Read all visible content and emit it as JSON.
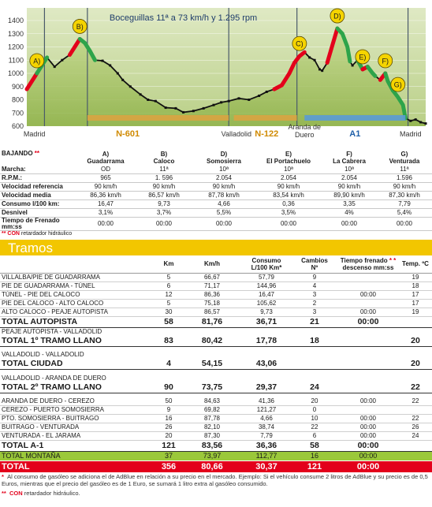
{
  "chart_data": {
    "type": "area",
    "annotation": "Boceguillas 11ª a 73 km/h y 1.295 rpm",
    "y_ticks": [
      "1400",
      "1300",
      "1200",
      "1100",
      "1000",
      "900",
      "800",
      "700",
      "600"
    ],
    "ylim": [
      580,
      1450
    ],
    "profile": [
      [
        0,
        880
      ],
      [
        4,
        1000
      ],
      [
        8,
        1120
      ],
      [
        11,
        1050
      ],
      [
        14,
        1100
      ],
      [
        17,
        1140
      ],
      [
        19,
        1200
      ],
      [
        21,
        1260
      ],
      [
        23,
        1230
      ],
      [
        25,
        1170
      ],
      [
        27,
        1100
      ],
      [
        30,
        1095
      ],
      [
        33,
        1060
      ],
      [
        36,
        1000
      ],
      [
        38,
        950
      ],
      [
        41,
        900
      ],
      [
        45,
        840
      ],
      [
        48,
        800
      ],
      [
        51,
        790
      ],
      [
        55,
        740
      ],
      [
        59,
        735
      ],
      [
        62,
        705
      ],
      [
        66,
        715
      ],
      [
        70,
        735
      ],
      [
        74,
        760
      ],
      [
        77,
        780
      ],
      [
        80,
        790
      ],
      [
        84,
        810
      ],
      [
        88,
        800
      ],
      [
        92,
        830
      ],
      [
        95,
        860
      ],
      [
        98,
        880
      ],
      [
        101,
        910
      ],
      [
        104,
        1000
      ],
      [
        106,
        1080
      ],
      [
        108,
        1130
      ],
      [
        110,
        1160
      ],
      [
        112,
        1120
      ],
      [
        114,
        1100
      ],
      [
        116,
        1030
      ],
      [
        117,
        1020
      ],
      [
        119,
        1080
      ],
      [
        121,
        1210
      ],
      [
        123,
        1340
      ],
      [
        125,
        1300
      ],
      [
        127,
        1200
      ],
      [
        128,
        1090
      ],
      [
        129,
        1060
      ],
      [
        131,
        1100
      ],
      [
        133,
        1030
      ],
      [
        135,
        1050
      ],
      [
        137,
        1000
      ],
      [
        138,
        980
      ],
      [
        140,
        950
      ],
      [
        142,
        1000
      ],
      [
        143,
        940
      ],
      [
        145,
        870
      ],
      [
        147,
        820
      ],
      [
        149,
        760
      ],
      [
        150,
        660
      ],
      [
        152,
        640
      ],
      [
        154,
        650
      ],
      [
        156,
        630
      ],
      [
        158,
        620
      ]
    ],
    "segments_color": [
      {
        "from": 0,
        "to": 4,
        "color": "#e3001b"
      },
      {
        "from": 4,
        "to": 8,
        "color": "#2da44a"
      },
      {
        "from": 17,
        "to": 21,
        "color": "#e3001b"
      },
      {
        "from": 21,
        "to": 27,
        "color": "#2da44a"
      },
      {
        "from": 98,
        "to": 110,
        "color": "#e3001b"
      },
      {
        "from": 119,
        "to": 123,
        "color": "#e3001b"
      },
      {
        "from": 123,
        "to": 128,
        "color": "#2da44a"
      },
      {
        "from": 131,
        "to": 133,
        "color": "#2da44a"
      },
      {
        "from": 133,
        "to": 135,
        "color": "#e3001b"
      },
      {
        "from": 135,
        "to": 138,
        "color": "#2da44a"
      },
      {
        "from": 140,
        "to": 142,
        "color": "#e3001b"
      },
      {
        "from": 142,
        "to": 145,
        "color": "#2da44a"
      },
      {
        "from": 145,
        "to": 150,
        "color": "#2da44a"
      }
    ],
    "points": [
      {
        "label": "A)",
        "x": 4
      },
      {
        "label": "B)",
        "x": 21
      },
      {
        "label": "C)",
        "x": 108
      },
      {
        "label": "D)",
        "x": 123
      },
      {
        "label": "E)",
        "x": 133
      },
      {
        "label": "F)",
        "x": 142
      },
      {
        "label": "G)",
        "x": 147
      }
    ],
    "places": [
      {
        "label": "Madrid",
        "x": 3
      },
      {
        "label": "Valladolid",
        "x": 83
      },
      {
        "label": "Aranda de Duero",
        "x": 110
      },
      {
        "label": "Madrid",
        "x": 152
      }
    ],
    "roads": [
      {
        "label": "N-601",
        "x": 40,
        "from": 24,
        "to": 80,
        "color": "#d9a441"
      },
      {
        "label": "N-122",
        "x": 95,
        "from": 82,
        "to": 107,
        "color": "#d9a441"
      },
      {
        "label": "A1",
        "x": 130,
        "from": 110,
        "to": 150,
        "color": "#5b9bd5"
      }
    ],
    "section_lines": [
      7,
      24,
      80,
      107,
      151
    ]
  },
  "bajando": {
    "title": "BAJANDO",
    "title_marks": "**",
    "headers": [
      "A)\nGuadarrama",
      "B)\nCaloco",
      "D)\nSomosierra",
      "E)\nEl Portachuelo",
      "F)\nLa Cabrera",
      "G)\nVenturada"
    ],
    "rows": [
      {
        "label": "Marcha:",
        "values": [
          "OD",
          "11ª",
          "10ª",
          "10ª",
          "10ª",
          "11ª"
        ]
      },
      {
        "label": "R.P.M.:",
        "values": [
          "965",
          "1. 596",
          "2.054",
          "2.054",
          "2.054",
          "1.596"
        ]
      },
      {
        "label": "Velocidad referencia",
        "values": [
          "90 km/h",
          "90 km/h",
          "90 km/h",
          "90 km/h",
          "90 km/h",
          "90 km/h"
        ]
      },
      {
        "label": "Velocidad media",
        "values": [
          "86,36 km/h",
          "86,57 km/h",
          "87,78 km/h",
          "83,54 km/h",
          "89,90 km/h",
          "87,30 km/h"
        ]
      },
      {
        "label": "Consumo l/100 km:",
        "values": [
          "16,47",
          "9,73",
          "4,66",
          "0,36",
          "3,35",
          "7,79"
        ]
      },
      {
        "label": "Desnivel",
        "values": [
          "3,1%",
          "3,7%",
          "5,5%",
          "3,5%",
          "4%",
          "5,4%"
        ]
      },
      {
        "label": "Tiempo de  Frenado mm:ss",
        "values": [
          "00:00",
          "00:00",
          "00:00",
          "00:00",
          "00:00",
          "00:00"
        ]
      }
    ],
    "note_marks": "**",
    "note_con": "CON",
    "note_text": "retardador hidráulico"
  },
  "tramos": {
    "title": "Tramos",
    "headers": [
      "",
      "Km",
      "Km/h",
      "Consumo\nL/100 Km*",
      "Cambios\nNº",
      "Tiempo frenado\ndescenso mm:ss",
      "Temp. ºC"
    ],
    "header_marks": "* *",
    "rows": [
      {
        "t": "row",
        "cells": [
          "VILLALBA/PIE DE GUADARRAMA",
          "5",
          "66,67",
          "57,79",
          "9",
          "",
          "19"
        ]
      },
      {
        "t": "row",
        "cells": [
          "PIE DE GUADARRAMA - TÚNEL",
          "6",
          "71,17",
          "144,96",
          "4",
          "",
          "18"
        ]
      },
      {
        "t": "row",
        "cells": [
          "TÚNEL - PIE DEL CALOCO",
          "12",
          "86,36",
          "16,47",
          "3",
          "00:00",
          "17"
        ]
      },
      {
        "t": "row",
        "cells": [
          "PIE DEL CALOCO - ALTO CALOCO",
          "5",
          "75,18",
          "105,62",
          "2",
          "",
          "17"
        ]
      },
      {
        "t": "row",
        "cells": [
          "ALTO CALOCO - PEAJE AUTOPISTA",
          "30",
          "86,57",
          "9,73",
          "3",
          "00:00",
          "19"
        ]
      },
      {
        "t": "tot",
        "cells": [
          "TOTAL  AUTOPISTA",
          "58",
          "81,76",
          "36,71",
          "21",
          "00:00",
          ""
        ]
      },
      {
        "t": "sub",
        "cells": [
          "PEAJE AUTOPISTA - VALLADOLID",
          "",
          "",
          "",
          "",
          "",
          ""
        ]
      },
      {
        "t": "tot",
        "cells": [
          "TOTAL  1º TRAMO LLANO",
          "83",
          "80,42",
          "17,78",
          "18",
          "",
          "20"
        ]
      },
      {
        "t": "blank",
        "cells": [
          "",
          "",
          "",
          "",
          "",
          "",
          ""
        ]
      },
      {
        "t": "sub",
        "cells": [
          "VALLADOLID - VALLADOLID",
          "",
          "",
          "",
          "",
          "",
          ""
        ]
      },
      {
        "t": "tot",
        "cells": [
          "TOTAL  CIUDAD",
          "4",
          "54,15",
          "43,06",
          "",
          "",
          "20"
        ]
      },
      {
        "t": "blank",
        "cells": [
          "",
          "",
          "",
          "",
          "",
          "",
          ""
        ]
      },
      {
        "t": "sub",
        "cells": [
          "VALLADOLID - ARANDA DE DUERO",
          "",
          "",
          "",
          "",
          "",
          ""
        ]
      },
      {
        "t": "tot",
        "cells": [
          "TOTAL  2º TRAMO LLANO",
          "90",
          "73,75",
          "29,37",
          "24",
          "",
          "22"
        ]
      },
      {
        "t": "blank",
        "cells": [
          "",
          "",
          "",
          "",
          "",
          "",
          ""
        ]
      },
      {
        "t": "row",
        "cells": [
          "ARANDA DE DUERO - CEREZO",
          "50",
          "84,63",
          "41,36",
          "20",
          "00:00",
          "22"
        ]
      },
      {
        "t": "row",
        "cells": [
          "CEREZO - PUERTO SOMOSIERRA",
          "9",
          "69,82",
          "121,27",
          "0",
          "",
          ""
        ]
      },
      {
        "t": "row",
        "cells": [
          "PTO. SOMOSIERRA - BUITRAGO",
          "16",
          "87,78",
          "4,66",
          "10",
          "00:00",
          "22"
        ]
      },
      {
        "t": "row",
        "cells": [
          "BUITRAGO - VENTURADA",
          "26",
          "82,10",
          "38,74",
          "22",
          "00:00",
          "26"
        ]
      },
      {
        "t": "row",
        "cells": [
          "VENTURADA - EL JARAMA",
          "20",
          "87,30",
          "7,79",
          "6",
          "00:00",
          "24"
        ]
      },
      {
        "t": "tot",
        "cells": [
          "TOTAL  A-1",
          "121",
          "83,56",
          "36,36",
          "58",
          "00:00",
          ""
        ]
      },
      {
        "t": "green",
        "cells": [
          "TOTAL MONTAÑA",
          "37",
          "73,97",
          "112,77",
          "16",
          "00:00",
          ""
        ]
      },
      {
        "t": "redrow",
        "cells": [
          "TOTAL",
          "356",
          "80,66",
          "30,37",
          "121",
          "00:00",
          ""
        ]
      }
    ]
  },
  "footnotes": {
    "f1_mark": "*",
    "f1": "Al consumo de gasóleo se adiciona el de AdBlue en relación a su precio en el mercado. Ejemplo: Si el vehículo consume 2 litros de AdBlue y su precio es de 0,5  Euros, mientras que el precio del gasóleo es de 1 Euro, se sumará 1 litro extra al gasóleo consumido.",
    "f2_mark": "**",
    "f2_con": "CON",
    "f2": "retardador hidráulico."
  },
  "colors": {
    "accent_yellow": "#f2c600",
    "total_red": "#e3001b",
    "montana_green": "#9bc83a",
    "climb_red": "#e3001b",
    "descent_green": "#2da44a",
    "marker_yellow": "#f5d400"
  }
}
